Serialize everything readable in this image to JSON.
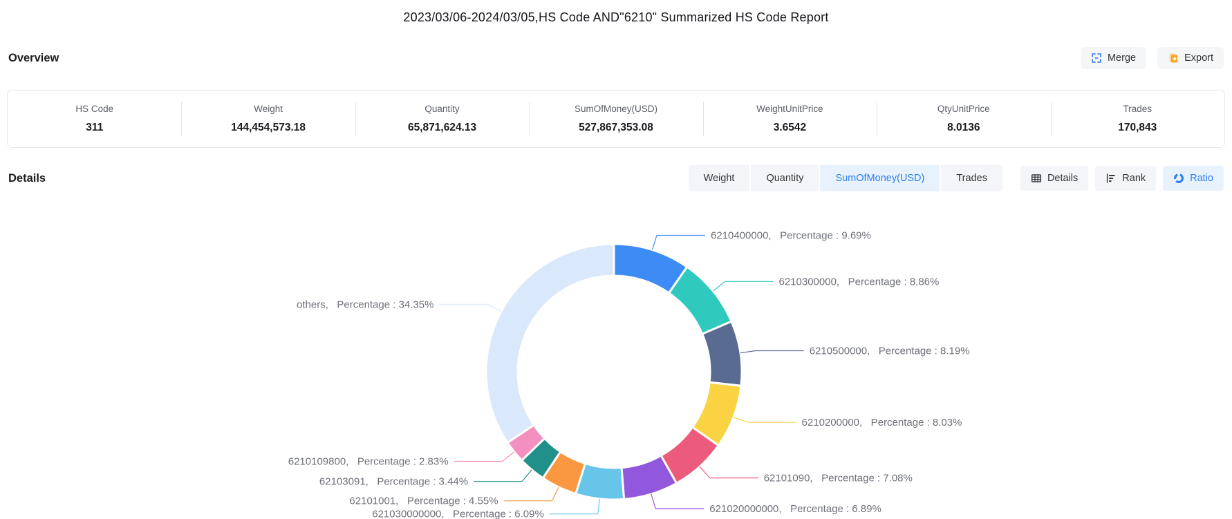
{
  "title": "2023/03/06-2024/03/05,HS Code AND\"6210\" Summarized HS Code Report",
  "overview": {
    "heading": "Overview",
    "actions": {
      "merge": "Merge",
      "export": "Export"
    },
    "stats": [
      {
        "label": "HS Code",
        "value": "311"
      },
      {
        "label": "Weight",
        "value": "144,454,573.18"
      },
      {
        "label": "Quantity",
        "value": "65,871,624.13"
      },
      {
        "label": "SumOfMoney(USD)",
        "value": "527,867,353.08"
      },
      {
        "label": "WeightUnitPrice",
        "value": "3.6542"
      },
      {
        "label": "QtyUnitPrice",
        "value": "8.0136"
      },
      {
        "label": "Trades",
        "value": "170,843"
      }
    ]
  },
  "details": {
    "heading": "Details",
    "metric_tabs": [
      {
        "label": "Weight",
        "selected": false
      },
      {
        "label": "Quantity",
        "selected": false
      },
      {
        "label": "SumOfMoney(USD)",
        "selected": true
      },
      {
        "label": "Trades",
        "selected": false
      }
    ],
    "view_tabs": [
      {
        "label": "Details",
        "icon": "table-icon",
        "selected": false
      },
      {
        "label": "Rank",
        "icon": "rank-icon",
        "selected": false
      },
      {
        "label": "Ratio",
        "icon": "ratio-icon",
        "selected": true
      }
    ]
  },
  "chart_data": {
    "type": "pie",
    "subtype": "donut",
    "metric": "SumOfMoney(USD)",
    "direction": "clockwise",
    "start_angle_deg": 0,
    "inner_radius_ratio": 0.75,
    "label_template": "{name},   Percentage : {value}%",
    "slices": [
      {
        "name": "6210400000",
        "value": 9.69,
        "color": "#3d8bf5"
      },
      {
        "name": "6210300000",
        "value": 8.86,
        "color": "#2fc9be"
      },
      {
        "name": "6210500000",
        "value": 8.19,
        "color": "#5a6b92"
      },
      {
        "name": "6210200000",
        "value": 8.03,
        "color": "#f9d342"
      },
      {
        "name": "62101090",
        "value": 7.08,
        "color": "#ec5b7b"
      },
      {
        "name": "621020000000",
        "value": 6.89,
        "color": "#9158dd"
      },
      {
        "name": "621030000000",
        "value": 6.09,
        "color": "#67c5ea"
      },
      {
        "name": "62101001",
        "value": 4.55,
        "color": "#f99841"
      },
      {
        "name": "62103091",
        "value": 3.44,
        "color": "#21908a"
      },
      {
        "name": "6210109800",
        "value": 2.83,
        "color": "#f490bf"
      },
      {
        "name": "others",
        "value": 34.35,
        "color": "#d9e8fb"
      }
    ],
    "label_text_color": "#6e7079"
  },
  "colors": {
    "accent_blue": "#2b7ff2",
    "tab_bg": "#f4f5f9",
    "tab_selected_bg": "#e8f2fd",
    "merge_icon": "#3e83f7",
    "export_icon": "#f5a623"
  }
}
